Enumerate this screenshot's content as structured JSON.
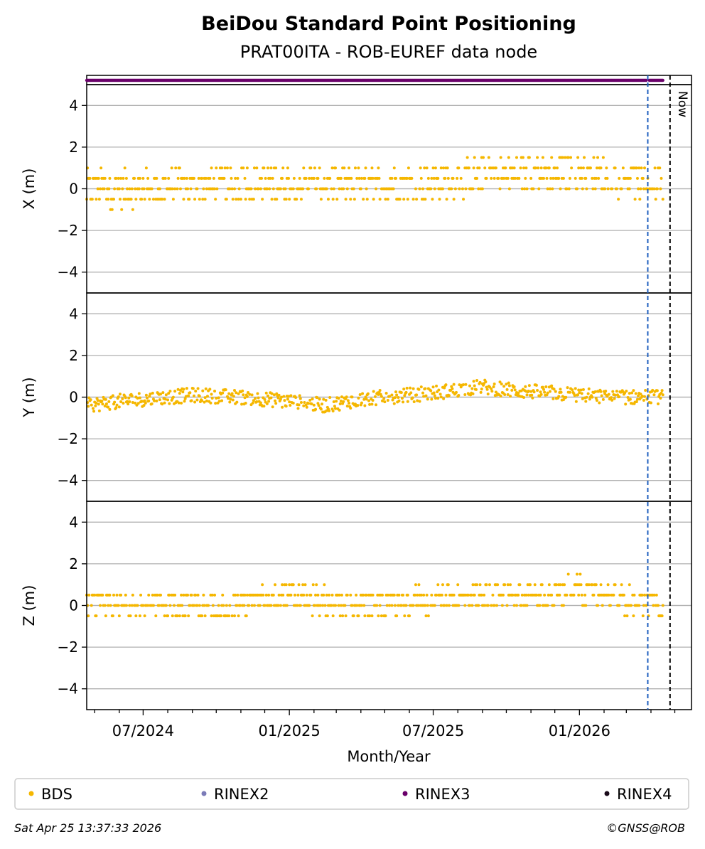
{
  "title": "BeiDou Standard Point Positioning",
  "subtitle": "PRAT00ITA - ROB-EUREF data node",
  "footer_left": "Sat Apr 25 13:37:33 2026",
  "footer_right": "©GNSS@ROB",
  "now_label": "Now",
  "colors": {
    "bds": "#f5b700",
    "rinex2": "#7b7bb8",
    "rinex3": "#6a006a",
    "rinex4": "#1a0a1a",
    "blue_line": "#1f5fbf",
    "grid": "#b0b0b0"
  },
  "legend": [
    {
      "label": "BDS",
      "color": "#f5b700"
    },
    {
      "label": "RINEX2",
      "color": "#7b7bb8"
    },
    {
      "label": "RINEX3",
      "color": "#6a006a"
    },
    {
      "label": "RINEX4",
      "color": "#1a0a1a"
    }
  ],
  "chart_data": {
    "type": "scatter",
    "title": "BeiDou Standard Point Positioning",
    "subtitle": "PRAT00ITA - ROB-EUREF data node",
    "xlabel": "Month/Year",
    "xlim": [
      "2024-04-21",
      "2026-05-22"
    ],
    "x_ticks": [
      "07/2024",
      "01/2025",
      "07/2025",
      "01/2026"
    ],
    "vertical_lines": [
      {
        "date": "2026-03-28",
        "style": "dashed",
        "color": "#1f5fbf"
      },
      {
        "date": "2026-04-25",
        "style": "dashed",
        "color": "#000000",
        "label": "Now"
      }
    ],
    "rinex3_availability": {
      "start": "2024-04-21",
      "end": "2026-04-16",
      "gap_around": "2026-03-28"
    },
    "panels": [
      {
        "ylabel": "X (m)",
        "ylim": [
          -5,
          5
        ],
        "yticks": [
          4,
          2,
          0,
          -2,
          -4
        ],
        "grid": true,
        "series_name": "BDS",
        "value_step": 0.5,
        "knots": [
          [
            "2024-04-21",
            0.0
          ],
          [
            "2024-07-01",
            0.0
          ],
          [
            "2024-10-01",
            0.2
          ],
          [
            "2025-01-01",
            0.3
          ],
          [
            "2025-04-01",
            0.1
          ],
          [
            "2025-07-01",
            0.4
          ],
          [
            "2025-10-01",
            0.7
          ],
          [
            "2026-01-01",
            0.8
          ],
          [
            "2026-04-16",
            0.2
          ]
        ],
        "scatter_range": 0.8
      },
      {
        "ylabel": "Y (m)",
        "ylim": [
          -5,
          5
        ],
        "yticks": [
          4,
          2,
          0,
          -2,
          -4
        ],
        "grid": true,
        "series_name": "BDS",
        "value_step": 0,
        "knots": [
          [
            "2024-04-21",
            -0.4
          ],
          [
            "2024-06-01",
            -0.2
          ],
          [
            "2024-09-01",
            0.1
          ],
          [
            "2024-11-01",
            0.0
          ],
          [
            "2025-01-01",
            -0.2
          ],
          [
            "2025-02-15",
            -0.4
          ],
          [
            "2025-04-01",
            -0.1
          ],
          [
            "2025-07-01",
            0.2
          ],
          [
            "2025-09-01",
            0.5
          ],
          [
            "2025-10-15",
            0.3
          ],
          [
            "2025-12-01",
            0.2
          ],
          [
            "2026-02-01",
            0.0
          ],
          [
            "2026-04-16",
            0.0
          ]
        ],
        "scatter_range": 0.35
      },
      {
        "ylabel": "Z (m)",
        "ylim": [
          -5,
          5
        ],
        "yticks": [
          4,
          2,
          0,
          -2,
          -4
        ],
        "grid": true,
        "series_name": "BDS",
        "value_step": 0.5,
        "knots": [
          [
            "2024-04-21",
            -0.1
          ],
          [
            "2024-07-01",
            0.1
          ],
          [
            "2024-10-01",
            0.0
          ],
          [
            "2025-01-01",
            0.4
          ],
          [
            "2025-04-01",
            0.0
          ],
          [
            "2025-07-01",
            0.3
          ],
          [
            "2025-10-01",
            0.5
          ],
          [
            "2026-01-01",
            0.7
          ],
          [
            "2026-04-16",
            0.0
          ]
        ],
        "scatter_range": 0.6
      }
    ]
  }
}
